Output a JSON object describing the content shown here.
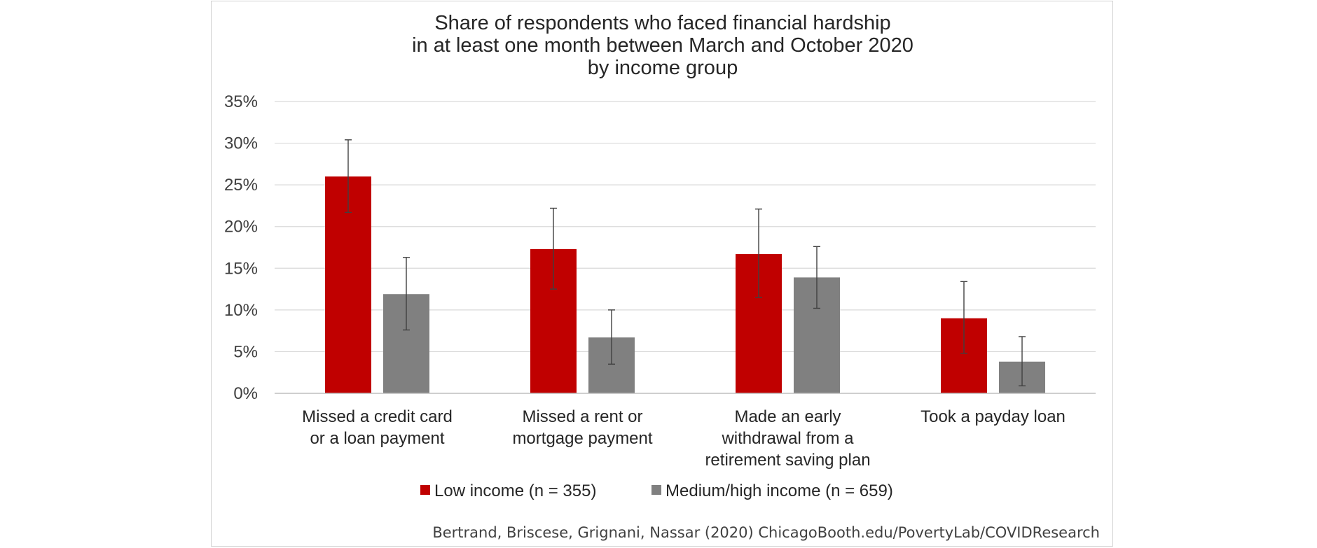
{
  "chart_data": {
    "type": "bar",
    "title": [
      "Share of respondents who faced financial hardship",
      "in at least one month between March and October 2020",
      "by income group"
    ],
    "categories": [
      [
        "Missed a credit card",
        "or a loan payment"
      ],
      [
        "Missed a rent or",
        "mortgage payment"
      ],
      [
        "Made an early",
        "withdrawal from a",
        "retirement saving plan"
      ],
      [
        "Took a payday loan"
      ]
    ],
    "series": [
      {
        "name": "Low income (n = 355)",
        "color": "#c00000",
        "values": [
          26.0,
          17.3,
          16.7,
          9.0
        ],
        "error_low": [
          21.7,
          12.5,
          11.5,
          4.8
        ],
        "error_high": [
          30.4,
          22.2,
          22.1,
          13.4
        ]
      },
      {
        "name": "Medium/high income (n = 659)",
        "color": "#808080",
        "values": [
          11.9,
          6.7,
          13.9,
          3.8
        ],
        "error_low": [
          7.6,
          3.5,
          10.2,
          0.9
        ],
        "error_high": [
          16.3,
          10.0,
          17.6,
          6.8
        ]
      }
    ],
    "ylim": [
      0,
      35
    ],
    "yticks": [
      0,
      5,
      10,
      15,
      20,
      25,
      30,
      35
    ],
    "ytick_labels": [
      "0%",
      "5%",
      "10%",
      "15%",
      "20%",
      "25%",
      "30%",
      "35%"
    ],
    "grid": true,
    "legend": "bottom",
    "xlabel": "",
    "ylabel": ""
  },
  "source": "Bertrand, Briscese, Grignani, Nassar (2020) ChicagoBooth.edu/PovertyLab/COVIDResearch"
}
